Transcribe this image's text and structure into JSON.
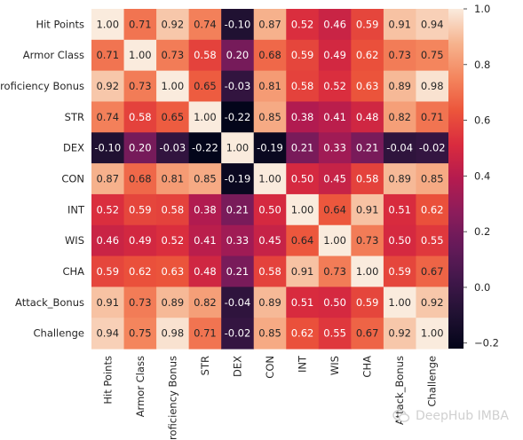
{
  "chart_data": {
    "type": "heatmap",
    "rows": [
      "Hit Points",
      "Armor Class",
      "Proficiency Bonus",
      "STR",
      "DEX",
      "CON",
      "INT",
      "WIS",
      "CHA",
      "Attack_Bonus",
      "Challenge"
    ],
    "columns": [
      "Hit Points",
      "Armor Class",
      "Proficiency Bonus",
      "STR",
      "DEX",
      "CON",
      "INT",
      "WIS",
      "CHA",
      "Attack_Bonus",
      "Challenge"
    ],
    "values": [
      [
        1.0,
        0.71,
        0.92,
        0.74,
        -0.1,
        0.87,
        0.52,
        0.46,
        0.59,
        0.91,
        0.94
      ],
      [
        0.71,
        1.0,
        0.73,
        0.58,
        0.2,
        0.68,
        0.59,
        0.49,
        0.62,
        0.73,
        0.75
      ],
      [
        0.92,
        0.73,
        1.0,
        0.65,
        -0.03,
        0.81,
        0.58,
        0.52,
        0.63,
        0.89,
        0.98
      ],
      [
        0.74,
        0.58,
        0.65,
        1.0,
        -0.22,
        0.85,
        0.38,
        0.41,
        0.48,
        0.82,
        0.71
      ],
      [
        -0.1,
        0.2,
        -0.03,
        -0.22,
        1.0,
        -0.19,
        0.21,
        0.33,
        0.21,
        -0.04,
        -0.02
      ],
      [
        0.87,
        0.68,
        0.81,
        0.85,
        -0.19,
        1.0,
        0.5,
        0.45,
        0.58,
        0.89,
        0.85
      ],
      [
        0.52,
        0.59,
        0.58,
        0.38,
        0.21,
        0.5,
        1.0,
        0.64,
        0.91,
        0.51,
        0.62
      ],
      [
        0.46,
        0.49,
        0.52,
        0.41,
        0.33,
        0.45,
        0.64,
        1.0,
        0.73,
        0.5,
        0.55
      ],
      [
        0.59,
        0.62,
        0.63,
        0.48,
        0.21,
        0.58,
        0.91,
        0.73,
        1.0,
        0.59,
        0.67
      ],
      [
        0.91,
        0.73,
        0.89,
        0.82,
        -0.04,
        0.89,
        0.51,
        0.5,
        0.59,
        1.0,
        0.92
      ],
      [
        0.94,
        0.75,
        0.98,
        0.71,
        -0.02,
        0.85,
        0.62,
        0.55,
        0.67,
        0.92,
        1.0
      ]
    ],
    "vmin": -0.22,
    "vmax": 1.0,
    "colormap": "rocket",
    "colorbar_ticks": [
      -0.2,
      0.0,
      0.2,
      0.4,
      0.6,
      0.8,
      1.0
    ],
    "colorbar_tick_labels": [
      "−0.2",
      "0.0",
      "0.2",
      "0.4",
      "0.6",
      "0.8",
      "1.0"
    ],
    "annotation_format": "0.00",
    "grid": false
  },
  "watermark": {
    "text": "DeepHub IMBA",
    "icon": "wechat-icon"
  }
}
